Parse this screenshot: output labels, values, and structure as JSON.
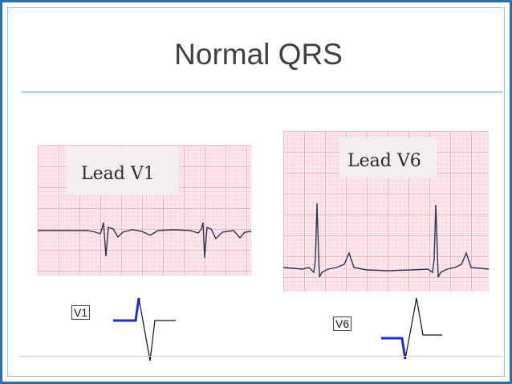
{
  "slide": {
    "title": "Normal QRS"
  },
  "panels": {
    "v1": {
      "lead_label": "Lead V1",
      "schematic_label": "V1"
    },
    "v6": {
      "lead_label": "Lead V6",
      "schematic_label": "V6"
    }
  },
  "colors": {
    "frame_blue": "#2f6fa8",
    "grid_pink": "#f2b8c6",
    "grid_pink_major": "#e48ba2",
    "ecg_trace": "#2c3550",
    "schematic_highlight": "#1f2fbf"
  }
}
